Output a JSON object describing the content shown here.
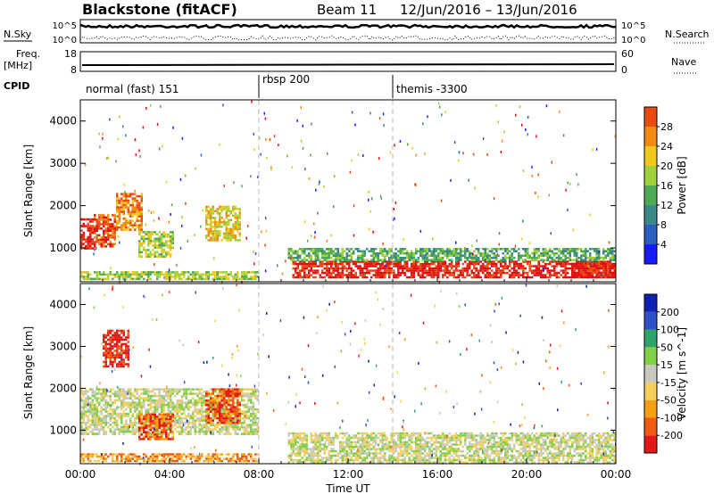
{
  "header": {
    "station": "Blackstone (fitACF)",
    "beam": "Beam 11",
    "date_range": "12/Jun/2016 – 13/Jun/2016"
  },
  "time_axis": {
    "ticks": [
      "00:00",
      "04:00",
      "08:00",
      "12:00",
      "16:00",
      "20:00",
      "00:00"
    ],
    "label": "Time UT",
    "range_hours": [
      0,
      24
    ]
  },
  "sky_panel": {
    "left_label": "N.Sky",
    "left_ticks": [
      "10^5",
      "10^0"
    ],
    "right_ticks": [
      "10^5",
      "10^0"
    ],
    "right_label": "N.Search"
  },
  "freq_panel": {
    "left_label_1": "Freq.",
    "left_label_2": "[MHz]",
    "left_ticks": [
      "18",
      "8"
    ],
    "right_ticks": [
      "60",
      "0"
    ],
    "right_label": "Nave"
  },
  "cpid": {
    "label": "CPID",
    "segments": [
      {
        "name": "normal (fast) 151",
        "start_hour": 0
      },
      {
        "name": "rbsp 200",
        "start_hour": 8
      },
      {
        "name": "themis -3300",
        "start_hour": 14
      }
    ]
  },
  "range_axis": {
    "label": "Slant Range [km]",
    "ticks": [
      "1000",
      "2000",
      "3000",
      "4000"
    ],
    "ylim": [
      200,
      4500
    ]
  },
  "colors": {
    "power": [
      "#1a1aff",
      "#2a5fbf",
      "#3a8a8a",
      "#4faa55",
      "#9fd23a",
      "#f0c81e",
      "#f08c14",
      "#e84a10",
      "#e01010"
    ],
    "velocity": [
      "#e01818",
      "#ee5a10",
      "#f5a014",
      "#f5cf5e",
      "#c8c8bf",
      "#82cf4a",
      "#2ea36a",
      "#3050c8",
      "#1020b0"
    ],
    "dashed_line": "#bbbbbb"
  },
  "chart_data": [
    {
      "type": "heatmap",
      "title": "Power",
      "ylabel": "Slant Range [km]",
      "xlabel": "Time UT",
      "x_range_hours": [
        0,
        24
      ],
      "ylim": [
        200,
        4500
      ],
      "colorbar": {
        "label": "Power [dB]",
        "ticks": [
          "4",
          "8",
          "12",
          "16",
          "20",
          "24",
          "28"
        ]
      },
      "regions": [
        {
          "t": [
            0.0,
            0.6
          ],
          "r": [
            1000,
            1700
          ],
          "level": 8
        },
        {
          "t": [
            0.6,
            1.6
          ],
          "r": [
            1050,
            1800
          ],
          "level": 7
        },
        {
          "t": [
            1.6,
            2.8
          ],
          "r": [
            1450,
            2300
          ],
          "level": 6
        },
        {
          "t": [
            5.6,
            7.2
          ],
          "r": [
            1200,
            2000
          ],
          "level": 5
        },
        {
          "t": [
            2.6,
            4.2
          ],
          "r": [
            800,
            1400
          ],
          "level": 4
        },
        {
          "t": [
            9.5,
            24.0
          ],
          "r": [
            300,
            700
          ],
          "level": 8
        },
        {
          "t": [
            22.0,
            24.0
          ],
          "r": [
            300,
            650
          ],
          "level": 8
        },
        {
          "t": [
            9.3,
            24.0
          ],
          "r": [
            700,
            1000
          ],
          "level": 3
        },
        {
          "t": [
            0.0,
            8.0
          ],
          "r": [
            250,
            450
          ],
          "level": 4
        }
      ]
    },
    {
      "type": "heatmap",
      "title": "Velocity",
      "ylabel": "Slant Range [km]",
      "xlabel": "Time UT",
      "x_range_hours": [
        0,
        24
      ],
      "ylim": [
        200,
        4500
      ],
      "colorbar": {
        "label": "Velocity [m s^-1]",
        "ticks": [
          "200",
          "100",
          "50",
          "15",
          "-15",
          "-50",
          "-100",
          "-200"
        ]
      },
      "regions": [
        {
          "t": [
            0.0,
            8.0
          ],
          "r": [
            900,
            2000
          ],
          "level": 4
        },
        {
          "t": [
            1.0,
            2.2
          ],
          "r": [
            2500,
            3400
          ],
          "level": 0
        },
        {
          "t": [
            2.6,
            4.2
          ],
          "r": [
            800,
            1400
          ],
          "level": 1
        },
        {
          "t": [
            5.6,
            7.2
          ],
          "r": [
            1200,
            2000
          ],
          "level": 1
        },
        {
          "t": [
            9.3,
            24.0
          ],
          "r": [
            250,
            950
          ],
          "level": 4
        },
        {
          "t": [
            0.0,
            8.0
          ],
          "r": [
            250,
            450
          ],
          "level": 2
        }
      ]
    }
  ]
}
